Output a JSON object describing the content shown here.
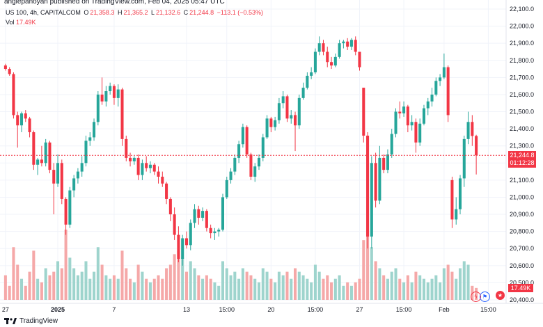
{
  "header": {
    "publisher_line": "anglepanoyan published on TradingView.com, Feb 04, 2025 05:47 UTC",
    "symbol": "US 100, 4h, CAPITALCOM",
    "o_label": "O",
    "o_value": "21,358.3",
    "h_label": "H",
    "h_value": "21,365.2",
    "l_label": "L",
    "l_value": "21,132.6",
    "c_label": "C",
    "c_value": "21,244.8",
    "change": "−113.1 (−0.53%)",
    "vol_label": "Vol",
    "vol_value": "17.49K"
  },
  "price_badge": {
    "price": "21,244.8",
    "countdown": "01:12:28"
  },
  "volume_badge": "17.49K",
  "footer": {
    "brand": "TradingView"
  },
  "colors": {
    "up": "#26a69a",
    "down": "#f23645",
    "vol_up": "#9ed4cd",
    "vol_down": "#f5a8a8"
  },
  "events": [
    {
      "icon": "flash-icon",
      "glyph": "ϟ"
    },
    {
      "icon": "us-flag-icon",
      "glyph": "⚑"
    }
  ],
  "chart_data": {
    "type": "candlestick",
    "title": "US 100, 4h, CAPITALCOM",
    "ylim": [
      20400,
      22100
    ],
    "y_ticks": [
      "22,100.0",
      "22,000.0",
      "21,900.0",
      "21,800.0",
      "21,700.0",
      "21,600.0",
      "21,500.0",
      "21,400.0",
      "21,300.0",
      "21,200.0",
      "21,100.0",
      "21,000.0",
      "20,900.0",
      "20,800.0",
      "20,700.0",
      "20,600.0",
      "20,500.0",
      "20,400.0"
    ],
    "x_ticks": [
      {
        "label": "27",
        "index": 0
      },
      {
        "label": "2025",
        "index": 13
      },
      {
        "label": "7",
        "index": 27
      },
      {
        "label": "13",
        "index": 45
      },
      {
        "label": "15:00",
        "index": 55
      },
      {
        "label": "20",
        "index": 66
      },
      {
        "label": "15:00",
        "index": 77
      },
      {
        "label": "27",
        "index": 88
      },
      {
        "label": "15:00",
        "index": 99
      },
      {
        "label": "Feb",
        "index": 109
      },
      {
        "label": "15:00",
        "index": 120
      }
    ],
    "last_price": 21244.8,
    "volume_max": 100,
    "candles": [
      {
        "o": 21770,
        "h": 21780,
        "l": 21740,
        "c": 21750,
        "v": 35
      },
      {
        "o": 21750,
        "h": 21760,
        "l": 21710,
        "c": 21720,
        "v": 20
      },
      {
        "o": 21720,
        "h": 21730,
        "l": 21460,
        "c": 21480,
        "v": 75
      },
      {
        "o": 21480,
        "h": 21500,
        "l": 21290,
        "c": 21420,
        "v": 50
      },
      {
        "o": 21420,
        "h": 21500,
        "l": 21380,
        "c": 21490,
        "v": 30
      },
      {
        "o": 21490,
        "h": 21510,
        "l": 21440,
        "c": 21460,
        "v": 20
      },
      {
        "o": 21460,
        "h": 21470,
        "l": 21350,
        "c": 21380,
        "v": 40
      },
      {
        "o": 21380,
        "h": 21390,
        "l": 21160,
        "c": 21190,
        "v": 70
      },
      {
        "o": 21190,
        "h": 21230,
        "l": 21130,
        "c": 21220,
        "v": 30
      },
      {
        "o": 21220,
        "h": 21300,
        "l": 21180,
        "c": 21200,
        "v": 25
      },
      {
        "o": 21200,
        "h": 21340,
        "l": 21180,
        "c": 21320,
        "v": 45
      },
      {
        "o": 21320,
        "h": 21330,
        "l": 21140,
        "c": 21160,
        "v": 35
      },
      {
        "o": 21160,
        "h": 21200,
        "l": 20900,
        "c": 21080,
        "v": 40
      },
      {
        "o": 21080,
        "h": 21250,
        "l": 21060,
        "c": 21200,
        "v": 55
      },
      {
        "o": 21200,
        "h": 21220,
        "l": 20960,
        "c": 20990,
        "v": 45
      },
      {
        "o": 20990,
        "h": 21000,
        "l": 20780,
        "c": 20840,
        "v": 100
      },
      {
        "o": 20840,
        "h": 21060,
        "l": 20820,
        "c": 21040,
        "v": 60
      },
      {
        "o": 21040,
        "h": 21130,
        "l": 21000,
        "c": 21110,
        "v": 45
      },
      {
        "o": 21110,
        "h": 21170,
        "l": 21080,
        "c": 21150,
        "v": 35
      },
      {
        "o": 21150,
        "h": 21240,
        "l": 21120,
        "c": 21200,
        "v": 40
      },
      {
        "o": 21200,
        "h": 21360,
        "l": 21180,
        "c": 21330,
        "v": 55
      },
      {
        "o": 21330,
        "h": 21380,
        "l": 21300,
        "c": 21350,
        "v": 30
      },
      {
        "o": 21350,
        "h": 21460,
        "l": 21330,
        "c": 21440,
        "v": 40
      },
      {
        "o": 21440,
        "h": 21620,
        "l": 21420,
        "c": 21600,
        "v": 75
      },
      {
        "o": 21600,
        "h": 21700,
        "l": 21540,
        "c": 21560,
        "v": 50
      },
      {
        "o": 21560,
        "h": 21650,
        "l": 21530,
        "c": 21620,
        "v": 35
      },
      {
        "o": 21620,
        "h": 21670,
        "l": 21600,
        "c": 21650,
        "v": 30
      },
      {
        "o": 21650,
        "h": 21660,
        "l": 21540,
        "c": 21580,
        "v": 35
      },
      {
        "o": 21580,
        "h": 21660,
        "l": 21530,
        "c": 21630,
        "v": 30
      },
      {
        "o": 21630,
        "h": 21640,
        "l": 21300,
        "c": 21340,
        "v": 70
      },
      {
        "o": 21340,
        "h": 21360,
        "l": 21210,
        "c": 21230,
        "v": 45
      },
      {
        "o": 21230,
        "h": 21260,
        "l": 21180,
        "c": 21210,
        "v": 30
      },
      {
        "o": 21210,
        "h": 21240,
        "l": 21190,
        "c": 21230,
        "v": 25
      },
      {
        "o": 21230,
        "h": 21250,
        "l": 21100,
        "c": 21130,
        "v": 50
      },
      {
        "o": 21130,
        "h": 21220,
        "l": 21100,
        "c": 21200,
        "v": 40
      },
      {
        "o": 21200,
        "h": 21240,
        "l": 21150,
        "c": 21170,
        "v": 30
      },
      {
        "o": 21170,
        "h": 21210,
        "l": 21140,
        "c": 21190,
        "v": 25
      },
      {
        "o": 21190,
        "h": 21200,
        "l": 21130,
        "c": 21150,
        "v": 30
      },
      {
        "o": 21150,
        "h": 21180,
        "l": 21080,
        "c": 21120,
        "v": 35
      },
      {
        "o": 21120,
        "h": 21150,
        "l": 21060,
        "c": 21080,
        "v": 30
      },
      {
        "o": 21080,
        "h": 21090,
        "l": 20960,
        "c": 20990,
        "v": 45
      },
      {
        "o": 20990,
        "h": 21000,
        "l": 20860,
        "c": 20900,
        "v": 50
      },
      {
        "o": 20900,
        "h": 20940,
        "l": 20750,
        "c": 20780,
        "v": 65
      },
      {
        "o": 20780,
        "h": 20830,
        "l": 20620,
        "c": 20640,
        "v": 70
      },
      {
        "o": 20640,
        "h": 20780,
        "l": 20600,
        "c": 20760,
        "v": 60
      },
      {
        "o": 20760,
        "h": 20800,
        "l": 20700,
        "c": 20720,
        "v": 40
      },
      {
        "o": 20720,
        "h": 20870,
        "l": 20690,
        "c": 20850,
        "v": 55
      },
      {
        "o": 20850,
        "h": 20960,
        "l": 20820,
        "c": 20930,
        "v": 45
      },
      {
        "o": 20930,
        "h": 20950,
        "l": 20840,
        "c": 20880,
        "v": 35
      },
      {
        "o": 20880,
        "h": 20940,
        "l": 20860,
        "c": 20920,
        "v": 30
      },
      {
        "o": 20920,
        "h": 20930,
        "l": 20800,
        "c": 20820,
        "v": 35
      },
      {
        "o": 20820,
        "h": 20840,
        "l": 20760,
        "c": 20790,
        "v": 30
      },
      {
        "o": 20790,
        "h": 20820,
        "l": 20750,
        "c": 20800,
        "v": 25
      },
      {
        "o": 20800,
        "h": 20820,
        "l": 20770,
        "c": 20810,
        "v": 20
      },
      {
        "o": 20810,
        "h": 21020,
        "l": 20800,
        "c": 21000,
        "v": 55
      },
      {
        "o": 21000,
        "h": 21120,
        "l": 20990,
        "c": 21100,
        "v": 45
      },
      {
        "o": 21100,
        "h": 21170,
        "l": 21080,
        "c": 21150,
        "v": 35
      },
      {
        "o": 21150,
        "h": 21250,
        "l": 21130,
        "c": 21230,
        "v": 40
      },
      {
        "o": 21230,
        "h": 21330,
        "l": 21200,
        "c": 21310,
        "v": 30
      },
      {
        "o": 21310,
        "h": 21430,
        "l": 21290,
        "c": 21410,
        "v": 45
      },
      {
        "o": 21410,
        "h": 21420,
        "l": 21230,
        "c": 21250,
        "v": 40
      },
      {
        "o": 21250,
        "h": 21260,
        "l": 21100,
        "c": 21120,
        "v": 35
      },
      {
        "o": 21120,
        "h": 21200,
        "l": 21090,
        "c": 21180,
        "v": 30
      },
      {
        "o": 21180,
        "h": 21250,
        "l": 21160,
        "c": 21230,
        "v": 25
      },
      {
        "o": 21230,
        "h": 21370,
        "l": 21210,
        "c": 21350,
        "v": 45
      },
      {
        "o": 21350,
        "h": 21480,
        "l": 21340,
        "c": 21460,
        "v": 40
      },
      {
        "o": 21460,
        "h": 21470,
        "l": 21380,
        "c": 21410,
        "v": 30
      },
      {
        "o": 21410,
        "h": 21470,
        "l": 21390,
        "c": 21450,
        "v": 25
      },
      {
        "o": 21450,
        "h": 21580,
        "l": 21430,
        "c": 21550,
        "v": 40
      },
      {
        "o": 21550,
        "h": 21620,
        "l": 21520,
        "c": 21590,
        "v": 35
      },
      {
        "o": 21590,
        "h": 21600,
        "l": 21440,
        "c": 21460,
        "v": 40
      },
      {
        "o": 21460,
        "h": 21510,
        "l": 21430,
        "c": 21480,
        "v": 30
      },
      {
        "o": 21480,
        "h": 21500,
        "l": 21270,
        "c": 21420,
        "v": 45
      },
      {
        "o": 21420,
        "h": 21600,
        "l": 21400,
        "c": 21580,
        "v": 40
      },
      {
        "o": 21580,
        "h": 21670,
        "l": 21570,
        "c": 21640,
        "v": 35
      },
      {
        "o": 21640,
        "h": 21730,
        "l": 21630,
        "c": 21710,
        "v": 30
      },
      {
        "o": 21710,
        "h": 21760,
        "l": 21690,
        "c": 21730,
        "v": 25
      },
      {
        "o": 21730,
        "h": 21870,
        "l": 21720,
        "c": 21850,
        "v": 50
      },
      {
        "o": 21850,
        "h": 21940,
        "l": 21830,
        "c": 21900,
        "v": 40
      },
      {
        "o": 21900,
        "h": 21920,
        "l": 21830,
        "c": 21850,
        "v": 30
      },
      {
        "o": 21850,
        "h": 21880,
        "l": 21760,
        "c": 21790,
        "v": 35
      },
      {
        "o": 21790,
        "h": 21820,
        "l": 21750,
        "c": 21770,
        "v": 25
      },
      {
        "o": 21770,
        "h": 21840,
        "l": 21760,
        "c": 21820,
        "v": 30
      },
      {
        "o": 21820,
        "h": 21920,
        "l": 21810,
        "c": 21900,
        "v": 35
      },
      {
        "o": 21900,
        "h": 21920,
        "l": 21870,
        "c": 21910,
        "v": 20
      },
      {
        "o": 21910,
        "h": 21930,
        "l": 21860,
        "c": 21880,
        "v": 25
      },
      {
        "o": 21880,
        "h": 21930,
        "l": 21860,
        "c": 21920,
        "v": 20
      },
      {
        "o": 21920,
        "h": 21940,
        "l": 21830,
        "c": 21850,
        "v": 25
      },
      {
        "o": 21850,
        "h": 21850,
        "l": 21740,
        "c": 21760,
        "v": 30
      },
      {
        "o": 21640,
        "h": 21640,
        "l": 21320,
        "c": 21360,
        "v": 85
      },
      {
        "o": 21360,
        "h": 21380,
        "l": 20700,
        "c": 20770,
        "v": 100
      },
      {
        "o": 20770,
        "h": 21240,
        "l": 20700,
        "c": 21200,
        "v": 75
      },
      {
        "o": 21200,
        "h": 21260,
        "l": 20940,
        "c": 20980,
        "v": 55
      },
      {
        "o": 20980,
        "h": 21300,
        "l": 20960,
        "c": 21230,
        "v": 45
      },
      {
        "o": 21230,
        "h": 21250,
        "l": 21140,
        "c": 21160,
        "v": 35
      },
      {
        "o": 21160,
        "h": 21280,
        "l": 21140,
        "c": 21250,
        "v": 30
      },
      {
        "o": 21250,
        "h": 21400,
        "l": 21230,
        "c": 21370,
        "v": 40
      },
      {
        "o": 21370,
        "h": 21520,
        "l": 21350,
        "c": 21500,
        "v": 45
      },
      {
        "o": 21500,
        "h": 21560,
        "l": 21460,
        "c": 21490,
        "v": 30
      },
      {
        "o": 21490,
        "h": 21560,
        "l": 21470,
        "c": 21530,
        "v": 25
      },
      {
        "o": 21530,
        "h": 21540,
        "l": 21380,
        "c": 21420,
        "v": 35
      },
      {
        "o": 21420,
        "h": 21480,
        "l": 21390,
        "c": 21440,
        "v": 25
      },
      {
        "o": 21440,
        "h": 21460,
        "l": 21260,
        "c": 21320,
        "v": 40
      },
      {
        "o": 21320,
        "h": 21460,
        "l": 21300,
        "c": 21430,
        "v": 35
      },
      {
        "o": 21430,
        "h": 21540,
        "l": 21420,
        "c": 21520,
        "v": 30
      },
      {
        "o": 21520,
        "h": 21580,
        "l": 21480,
        "c": 21560,
        "v": 25
      },
      {
        "o": 21560,
        "h": 21640,
        "l": 21530,
        "c": 21600,
        "v": 30
      },
      {
        "o": 21600,
        "h": 21700,
        "l": 21590,
        "c": 21680,
        "v": 35
      },
      {
        "o": 21680,
        "h": 21720,
        "l": 21650,
        "c": 21700,
        "v": 25
      },
      {
        "o": 21700,
        "h": 21840,
        "l": 21690,
        "c": 21760,
        "v": 45
      },
      {
        "o": 21760,
        "h": 21770,
        "l": 21440,
        "c": 21480,
        "v": 50
      },
      {
        "o": 21100,
        "h": 21120,
        "l": 20820,
        "c": 20870,
        "v": 40
      },
      {
        "o": 20870,
        "h": 21000,
        "l": 20840,
        "c": 20930,
        "v": 30
      },
      {
        "o": 20930,
        "h": 21130,
        "l": 20900,
        "c": 21110,
        "v": 45
      },
      {
        "o": 21110,
        "h": 21360,
        "l": 21060,
        "c": 21340,
        "v": 55
      },
      {
        "o": 21340,
        "h": 21500,
        "l": 21310,
        "c": 21440,
        "v": 50
      },
      {
        "o": 21440,
        "h": 21480,
        "l": 21300,
        "c": 21358,
        "v": 20
      },
      {
        "o": 21358,
        "h": 21365,
        "l": 21133,
        "c": 21245,
        "v": 17
      }
    ]
  }
}
